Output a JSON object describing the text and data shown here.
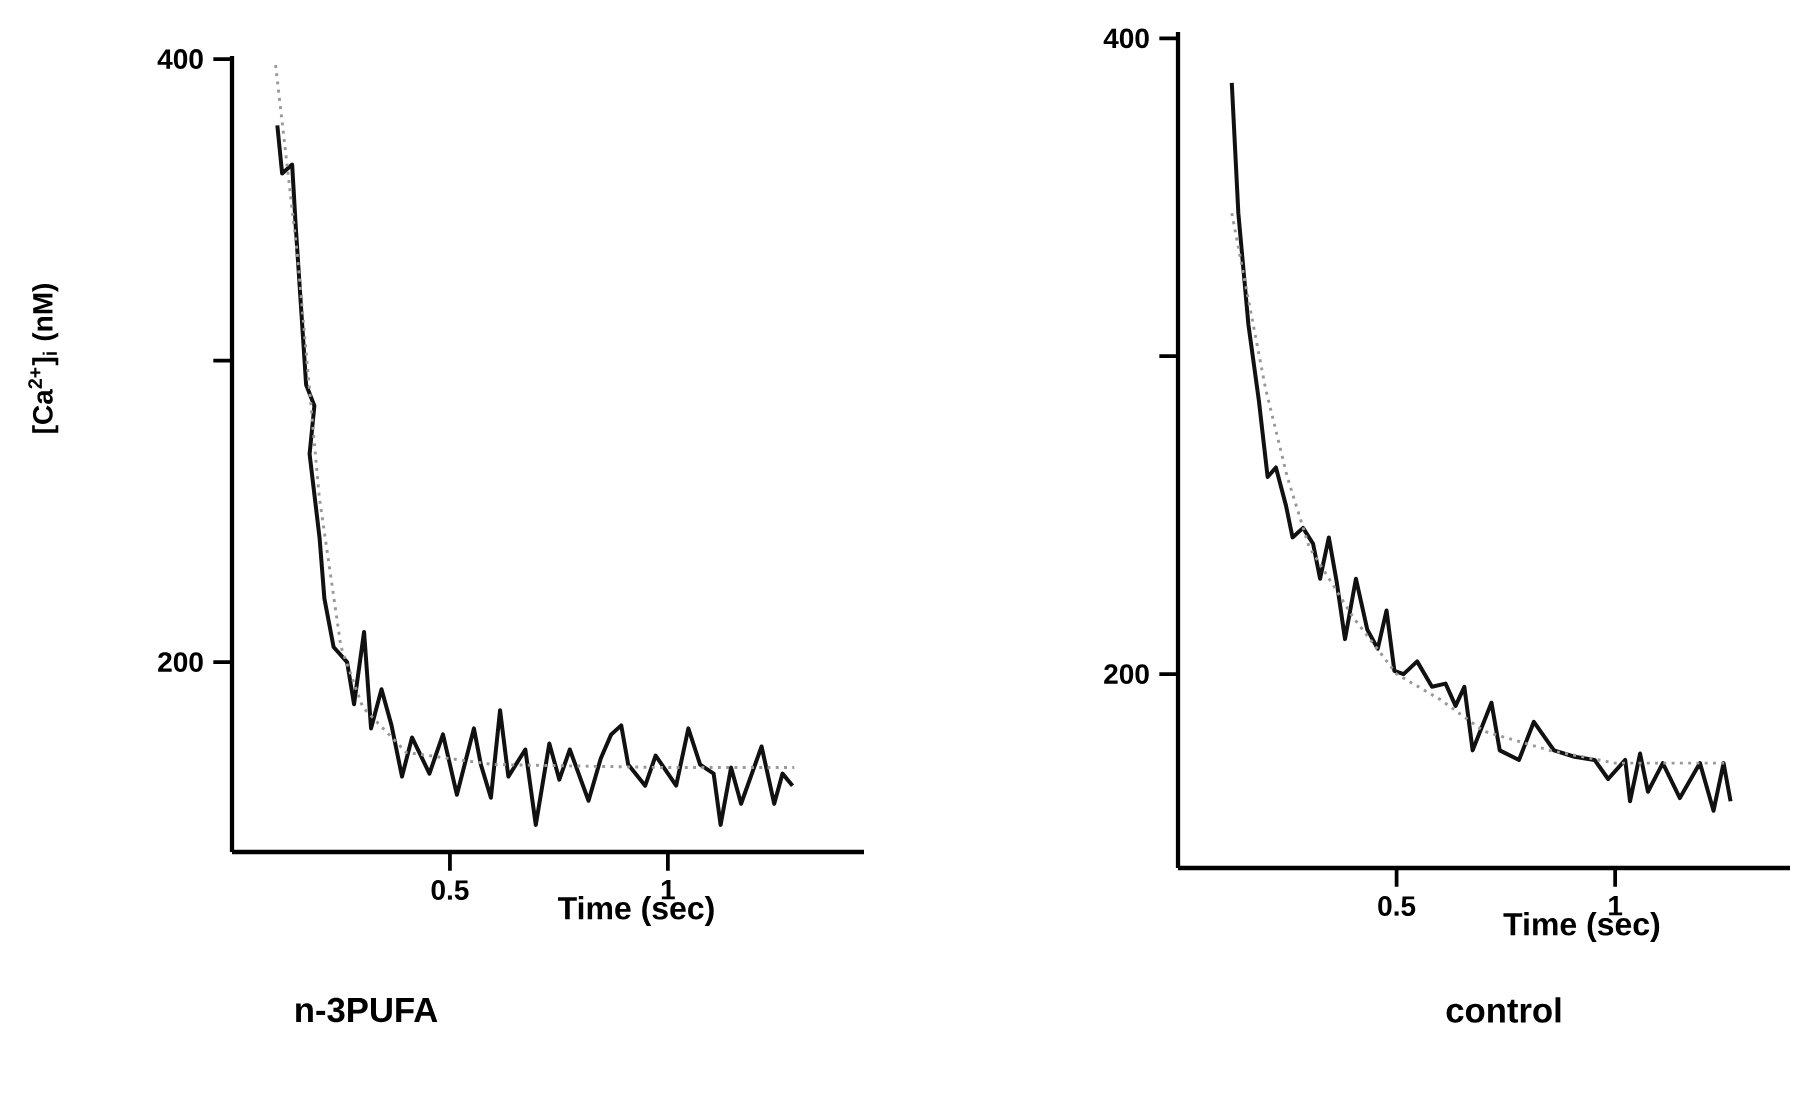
{
  "chart_data": [
    {
      "type": "line",
      "title": "n-3PUFA",
      "xlabel": "Time  (sec)",
      "ylabel": "[Ca$^{2+}$]$_{i}$ (nM)",
      "xlim": [
        0,
        1.45
      ],
      "xticks": [
        0.5,
        1
      ],
      "ylim": [
        137,
        401
      ],
      "yticks": [
        200,
        {
          "value": 300,
          "label": null
        },
        400
      ],
      "series": [
        {
          "color": "#111111",
          "line_style": "solid",
          "x": [
            0.104,
            0.115,
            0.138,
            0.146,
            0.17,
            0.189,
            0.178,
            0.201,
            0.212,
            0.233,
            0.264,
            0.28,
            0.303,
            0.319,
            0.343,
            0.366,
            0.39,
            0.413,
            0.453,
            0.484,
            0.516,
            0.555,
            0.571,
            0.594,
            0.615,
            0.634,
            0.673,
            0.697,
            0.728,
            0.751,
            0.775,
            0.818,
            0.846,
            0.87,
            0.893,
            0.909,
            0.948,
            0.972,
            1.019,
            1.047,
            1.074,
            1.105,
            1.121,
            1.145,
            1.168,
            1.215,
            1.244,
            1.263,
            1.286
          ],
          "values": [
            378,
            362,
            365,
            345,
            292,
            285,
            269,
            241,
            221,
            205,
            200,
            186,
            210,
            178,
            191,
            179,
            162,
            175,
            163,
            176,
            156,
            178,
            166,
            155,
            184,
            162,
            171,
            146,
            173,
            161,
            171,
            154,
            168,
            176,
            179,
            166,
            159,
            169,
            159,
            178,
            166,
            163,
            146,
            165,
            153,
            172,
            153,
            163,
            159
          ]
        },
        {
          "color": "#999999",
          "line_style": "dotted",
          "x": [
            0.1,
            0.15,
            0.2,
            0.25,
            0.3,
            0.4,
            0.6,
            1.0,
            1.29
          ],
          "values": [
            398,
            335,
            255,
            205,
            185,
            170,
            166,
            165,
            165
          ]
        }
      ]
    },
    {
      "type": "line",
      "title": "control",
      "xlabel": "Time  (sec)",
      "xlim": [
        0,
        1.4
      ],
      "xticks": [
        0.5,
        1
      ],
      "ylim": [
        139,
        402
      ],
      "yticks": [
        200,
        {
          "value": 300,
          "label": null
        },
        400
      ],
      "series": [
        {
          "color": "#111111",
          "line_style": "solid",
          "x": [
            0.123,
            0.138,
            0.161,
            0.185,
            0.205,
            0.224,
            0.247,
            0.262,
            0.286,
            0.309,
            0.325,
            0.345,
            0.363,
            0.382,
            0.407,
            0.433,
            0.457,
            0.477,
            0.495,
            0.516,
            0.547,
            0.581,
            0.612,
            0.635,
            0.655,
            0.674,
            0.717,
            0.736,
            0.78,
            0.814,
            0.86,
            0.907,
            0.953,
            0.984,
            1.023,
            1.034,
            1.057,
            1.075,
            1.109,
            1.148,
            1.194,
            1.225,
            1.248,
            1.264
          ],
          "values": [
            386,
            345,
            310,
            286,
            262,
            265,
            253,
            243,
            246,
            241,
            230,
            243,
            229,
            211,
            230,
            214,
            208,
            220,
            201,
            200,
            204,
            196,
            197,
            190,
            196,
            176,
            191,
            176,
            173,
            185,
            176,
            174,
            173,
            167,
            173,
            160,
            175,
            163,
            172,
            161,
            172,
            157,
            172,
            160
          ]
        },
        {
          "color": "#999999",
          "line_style": "dotted",
          "x": [
            0.123,
            0.2,
            0.25,
            0.3,
            0.4,
            0.5,
            0.6,
            0.7,
            0.85,
            1.0,
            1.26
          ],
          "values": [
            345,
            290,
            262,
            240,
            218,
            200,
            192,
            182,
            176,
            172,
            172
          ]
        }
      ]
    }
  ]
}
